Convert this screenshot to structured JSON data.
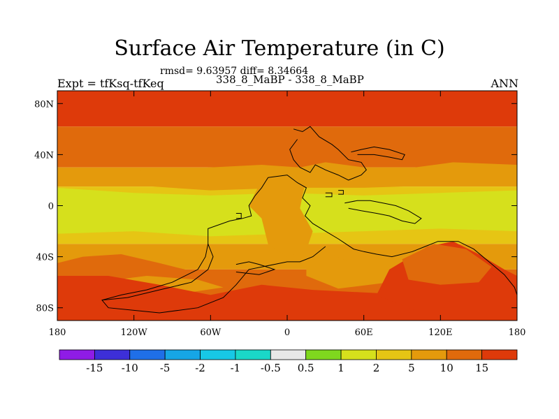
{
  "chart_data": {
    "type": "heatmap",
    "title": "Surface Air Temperature (in C)",
    "stats_text": "rmsd= 9.63957 diff= 8.34664",
    "subtitle": "338_8_MaBP - 338_8_MaBP",
    "left_label": "Expt = tfKsq-tfKeq",
    "right_label": "ANN",
    "xlim": [
      -180,
      180
    ],
    "ylim": [
      -90,
      90
    ],
    "x_ticks": [
      {
        "value": -180,
        "label": "180"
      },
      {
        "value": -120,
        "label": "120W"
      },
      {
        "value": -60,
        "label": "60W"
      },
      {
        "value": 0,
        "label": "0"
      },
      {
        "value": 60,
        "label": "60E"
      },
      {
        "value": 120,
        "label": "120E"
      },
      {
        "value": 180,
        "label": "180"
      }
    ],
    "y_ticks": [
      {
        "value": 80,
        "label": "80N"
      },
      {
        "value": 40,
        "label": "40N"
      },
      {
        "value": 0,
        "label": "0"
      },
      {
        "value": -40,
        "label": "40S"
      },
      {
        "value": -80,
        "label": "80S"
      }
    ],
    "colorbar": {
      "colors": [
        "#8f1ce6",
        "#3d2fd8",
        "#1f6fe8",
        "#16a6e6",
        "#17c8e6",
        "#1ad8c8",
        "#e8e8e8",
        "#7fd81e",
        "#d6e01c",
        "#e6c514",
        "#e49a0c",
        "#e06a0c",
        "#de3a0a"
      ],
      "labels": [
        "-15",
        "-10",
        "-5",
        "-2",
        "-1",
        "-0.5",
        "0.5",
        "1",
        "2",
        "5",
        "10",
        "15"
      ]
    },
    "level_colors": {
      "c2": "#d6e01c",
      "c5": "#e6c514",
      "c10": "#e49a0c",
      "c15": "#e06a0c",
      "cmax": "#de3a0a"
    },
    "latitude_bands": [
      {
        "lat_from": 90,
        "lat_to": 62,
        "level": "cmax"
      },
      {
        "lat_from": 62,
        "lat_to": 30,
        "level": "c15"
      },
      {
        "lat_from": 30,
        "lat_to": 15,
        "level": "c10"
      },
      {
        "lat_from": 15,
        "lat_to": -30,
        "level": "c5"
      },
      {
        "lat_from": -30,
        "lat_to": -50,
        "level": "c10"
      },
      {
        "lat_from": -50,
        "lat_to": -90,
        "level": "c15"
      }
    ],
    "regions": [
      {
        "level": "c10",
        "points": [
          [
            -110,
            28
          ],
          [
            -60,
            30
          ],
          [
            -20,
            32
          ],
          [
            10,
            30
          ],
          [
            30,
            34
          ],
          [
            60,
            30
          ],
          [
            100,
            30
          ],
          [
            130,
            34
          ],
          [
            180,
            32
          ],
          [
            180,
            18
          ],
          [
            120,
            16
          ],
          [
            60,
            14
          ],
          [
            0,
            14
          ],
          [
            -60,
            12
          ],
          [
            -120,
            16
          ],
          [
            -180,
            18
          ]
        ]
      },
      {
        "level": "c2",
        "points": [
          [
            -180,
            14
          ],
          [
            -120,
            10
          ],
          [
            -60,
            8
          ],
          [
            0,
            10
          ],
          [
            60,
            8
          ],
          [
            120,
            10
          ],
          [
            180,
            12
          ],
          [
            180,
            -20
          ],
          [
            120,
            -18
          ],
          [
            60,
            -20
          ],
          [
            0,
            -22
          ],
          [
            -60,
            -24
          ],
          [
            -120,
            -20
          ],
          [
            -180,
            -22
          ]
        ]
      },
      {
        "level": "c10",
        "points": [
          [
            -15,
            30
          ],
          [
            10,
            30
          ],
          [
            15,
            22
          ],
          [
            10,
            -2
          ],
          [
            20,
            -20
          ],
          [
            15,
            -35
          ],
          [
            0,
            -40
          ],
          [
            -15,
            -30
          ],
          [
            -20,
            -10
          ],
          [
            -30,
            0
          ],
          [
            -20,
            20
          ]
        ]
      },
      {
        "level": "c10",
        "points": [
          [
            15,
            -38
          ],
          [
            35,
            -38
          ],
          [
            50,
            -45
          ],
          [
            80,
            -48
          ],
          [
            80,
            -60
          ],
          [
            40,
            -65
          ],
          [
            15,
            -55
          ]
        ]
      },
      {
        "level": "c15",
        "points": [
          [
            -160,
            -40
          ],
          [
            -130,
            -38
          ],
          [
            -100,
            -45
          ],
          [
            -80,
            -50
          ],
          [
            -50,
            -55
          ],
          [
            -40,
            -62
          ],
          [
            -80,
            -68
          ],
          [
            -120,
            -72
          ],
          [
            -160,
            -70
          ],
          [
            -180,
            -65
          ],
          [
            -180,
            -45
          ]
        ]
      },
      {
        "level": "c10",
        "points": [
          [
            -150,
            -60
          ],
          [
            -110,
            -55
          ],
          [
            -70,
            -58
          ],
          [
            -50,
            -64
          ],
          [
            -90,
            -70
          ],
          [
            -140,
            -70
          ]
        ]
      },
      {
        "level": "cmax",
        "points": [
          [
            -180,
            -55
          ],
          [
            -140,
            -55
          ],
          [
            -100,
            -62
          ],
          [
            -60,
            -70
          ],
          [
            -20,
            -62
          ],
          [
            20,
            -66
          ],
          [
            60,
            -68
          ],
          [
            100,
            -70
          ],
          [
            140,
            -62
          ],
          [
            180,
            -58
          ],
          [
            180,
            -90
          ],
          [
            -180,
            -90
          ]
        ]
      },
      {
        "level": "cmax",
        "points": [
          [
            80,
            -50
          ],
          [
            110,
            -32
          ],
          [
            130,
            -28
          ],
          [
            150,
            -38
          ],
          [
            170,
            -50
          ],
          [
            180,
            -55
          ],
          [
            180,
            -80
          ],
          [
            140,
            -85
          ],
          [
            100,
            -82
          ],
          [
            70,
            -70
          ]
        ]
      },
      {
        "level": "c15",
        "points": [
          [
            90,
            -42
          ],
          [
            115,
            -30
          ],
          [
            140,
            -34
          ],
          [
            160,
            -48
          ],
          [
            150,
            -60
          ],
          [
            120,
            -62
          ],
          [
            95,
            -58
          ]
        ]
      }
    ],
    "outlines": [
      [
        [
          -15,
          22
        ],
        [
          0,
          24
        ],
        [
          8,
          18
        ],
        [
          15,
          14
        ],
        [
          12,
          6
        ],
        [
          18,
          0
        ],
        [
          14,
          -8
        ],
        [
          20,
          -14
        ],
        [
          30,
          -20
        ],
        [
          40,
          -26
        ],
        [
          46,
          -30
        ],
        [
          52,
          -34
        ],
        [
          60,
          -36
        ],
        [
          70,
          -38
        ],
        [
          82,
          -40
        ],
        [
          98,
          -36
        ],
        [
          108,
          -32
        ],
        [
          118,
          -28
        ],
        [
          134,
          -28
        ],
        [
          146,
          -34
        ],
        [
          158,
          -44
        ],
        [
          170,
          -54
        ],
        [
          178,
          -64
        ],
        [
          180,
          -70
        ]
      ],
      [
        [
          -15,
          22
        ],
        [
          -20,
          14
        ],
        [
          -25,
          8
        ],
        [
          -30,
          0
        ],
        [
          -28,
          -8
        ],
        [
          -35,
          -10
        ],
        [
          -45,
          -12
        ],
        [
          -62,
          -18
        ],
        [
          -62,
          -30
        ],
        [
          -64,
          -40
        ],
        [
          -70,
          -50
        ],
        [
          -90,
          -60
        ],
        [
          -110,
          -66
        ],
        [
          -130,
          -70
        ],
        [
          -145,
          -74
        ],
        [
          -140,
          -80
        ],
        [
          -120,
          -82
        ],
        [
          -100,
          -84
        ],
        [
          -70,
          -80
        ],
        [
          -50,
          -72
        ],
        [
          -40,
          -62
        ],
        [
          -30,
          -50
        ],
        [
          -10,
          -46
        ],
        [
          0,
          -44
        ],
        [
          10,
          -44
        ],
        [
          20,
          -40
        ],
        [
          30,
          -32
        ]
      ],
      [
        [
          -62,
          -30
        ],
        [
          -58,
          -40
        ],
        [
          -62,
          -50
        ],
        [
          -75,
          -60
        ],
        [
          -100,
          -66
        ],
        [
          -125,
          -72
        ],
        [
          -145,
          -74
        ]
      ],
      [
        [
          -40,
          -46
        ],
        [
          -30,
          -44
        ],
        [
          -22,
          -46
        ],
        [
          -10,
          -50
        ],
        [
          -22,
          -54
        ],
        [
          -40,
          -52
        ]
      ],
      [
        [
          5,
          60
        ],
        [
          12,
          58
        ],
        [
          18,
          62
        ],
        [
          25,
          54
        ],
        [
          35,
          48
        ],
        [
          40,
          44
        ],
        [
          48,
          36
        ],
        [
          58,
          34
        ],
        [
          62,
          28
        ],
        [
          58,
          24
        ],
        [
          48,
          20
        ],
        [
          40,
          24
        ],
        [
          30,
          28
        ],
        [
          22,
          32
        ],
        [
          18,
          26
        ],
        [
          10,
          30
        ],
        [
          5,
          36
        ],
        [
          2,
          44
        ],
        [
          8,
          52
        ]
      ],
      [
        [
          50,
          42
        ],
        [
          58,
          44
        ],
        [
          68,
          46
        ],
        [
          80,
          44
        ],
        [
          92,
          40
        ],
        [
          90,
          36
        ],
        [
          80,
          38
        ],
        [
          68,
          40
        ],
        [
          55,
          40
        ]
      ],
      [
        [
          45,
          2
        ],
        [
          55,
          4
        ],
        [
          65,
          4
        ],
        [
          75,
          2
        ],
        [
          85,
          0
        ],
        [
          95,
          -4
        ],
        [
          105,
          -10
        ],
        [
          100,
          -14
        ],
        [
          90,
          -12
        ],
        [
          80,
          -8
        ],
        [
          70,
          -6
        ],
        [
          58,
          -4
        ],
        [
          48,
          -2
        ]
      ],
      [
        [
          -40,
          -6
        ],
        [
          -36,
          -6
        ],
        [
          -36,
          -10
        ],
        [
          -40,
          -10
        ]
      ],
      [
        [
          30,
          10
        ],
        [
          35,
          10
        ],
        [
          35,
          7
        ],
        [
          30,
          7
        ]
      ],
      [
        [
          40,
          12
        ],
        [
          44,
          12
        ],
        [
          44,
          9
        ],
        [
          40,
          9
        ]
      ]
    ]
  }
}
